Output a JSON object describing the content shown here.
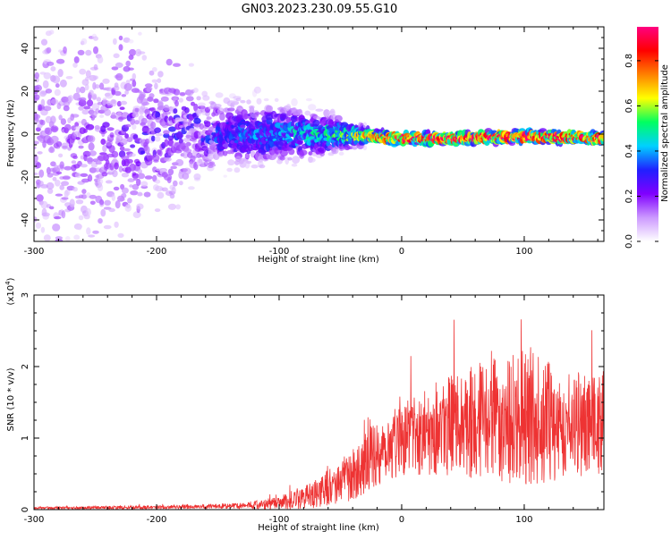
{
  "title": "GN03.2023.230.09.55.G10",
  "chart_data": [
    {
      "type": "heatmap",
      "xlabel": "Height of straight line (km)",
      "ylabel": "Frequency (Hz)",
      "xlim": [
        -300,
        165
      ],
      "ylim": [
        -50,
        50
      ],
      "x_ticks": [
        -300,
        -200,
        -100,
        0,
        100
      ],
      "y_ticks": [
        -40,
        -20,
        0,
        20,
        40
      ],
      "colorbar": {
        "label": "Normalized spectral amplitude",
        "range": [
          0,
          0.95
        ],
        "ticks": [
          "0.0",
          "0.2",
          "0.4",
          "0.6",
          "0.8"
        ],
        "colors": [
          "#ffffff",
          "#cc99ff",
          "#8000ff",
          "#2020ff",
          "#00d0ff",
          "#00ff60",
          "#ffff00",
          "#ff8000",
          "#ff0000",
          "#ff0080"
        ]
      },
      "bands": [
        {
          "x": -300,
          "center": 0,
          "spread": 45,
          "amp": 0.15
        },
        {
          "x": -250,
          "center": 0,
          "spread": 40,
          "amp": 0.18
        },
        {
          "x": -200,
          "center": 0,
          "spread": 25,
          "amp": 0.25
        },
        {
          "x": -150,
          "center": 0,
          "spread": 12,
          "amp": 0.3
        },
        {
          "x": -100,
          "center": 0,
          "spread": 10,
          "amp": 0.38
        },
        {
          "x": -60,
          "center": 0,
          "spread": 7,
          "amp": 0.45
        },
        {
          "x": -30,
          "center": -1,
          "spread": 3,
          "amp": 0.65
        },
        {
          "x": 0,
          "center": -2,
          "spread": 2.5,
          "amp": 0.85
        },
        {
          "x": 50,
          "center": -2,
          "spread": 2.5,
          "amp": 0.85
        },
        {
          "x": 100,
          "center": -1,
          "spread": 2.5,
          "amp": 0.9
        },
        {
          "x": 165,
          "center": -2,
          "spread": 2.5,
          "amp": 0.85
        }
      ]
    },
    {
      "type": "line",
      "xlabel": "Height of straight line (km)",
      "ylabel": "SNR (10 * v/v)",
      "yscale_label": "(x10",
      "yscale_exp": "4",
      "yscale_close": ")",
      "xlim": [
        -300,
        165
      ],
      "ylim": [
        0,
        3
      ],
      "x_ticks": [
        -300,
        -200,
        -100,
        0,
        100
      ],
      "y_ticks": [
        0,
        1,
        2,
        3
      ],
      "color": "#ee3333",
      "envelope": [
        {
          "x": -300,
          "mean": 0.02,
          "amp": 0.02
        },
        {
          "x": -200,
          "mean": 0.03,
          "amp": 0.03
        },
        {
          "x": -130,
          "mean": 0.05,
          "amp": 0.05
        },
        {
          "x": -100,
          "mean": 0.08,
          "amp": 0.12
        },
        {
          "x": -70,
          "mean": 0.2,
          "amp": 0.25
        },
        {
          "x": -40,
          "mean": 0.45,
          "amp": 0.45
        },
        {
          "x": -20,
          "mean": 0.75,
          "amp": 0.6
        },
        {
          "x": 0,
          "mean": 0.95,
          "amp": 0.65
        },
        {
          "x": 30,
          "mean": 1.1,
          "amp": 0.85
        },
        {
          "x": 60,
          "mean": 1.15,
          "amp": 1.0
        },
        {
          "x": 100,
          "mean": 1.2,
          "amp": 1.2
        },
        {
          "x": 130,
          "mean": 1.1,
          "amp": 1.0
        },
        {
          "x": 165,
          "mean": 1.15,
          "amp": 0.9
        }
      ]
    }
  ]
}
